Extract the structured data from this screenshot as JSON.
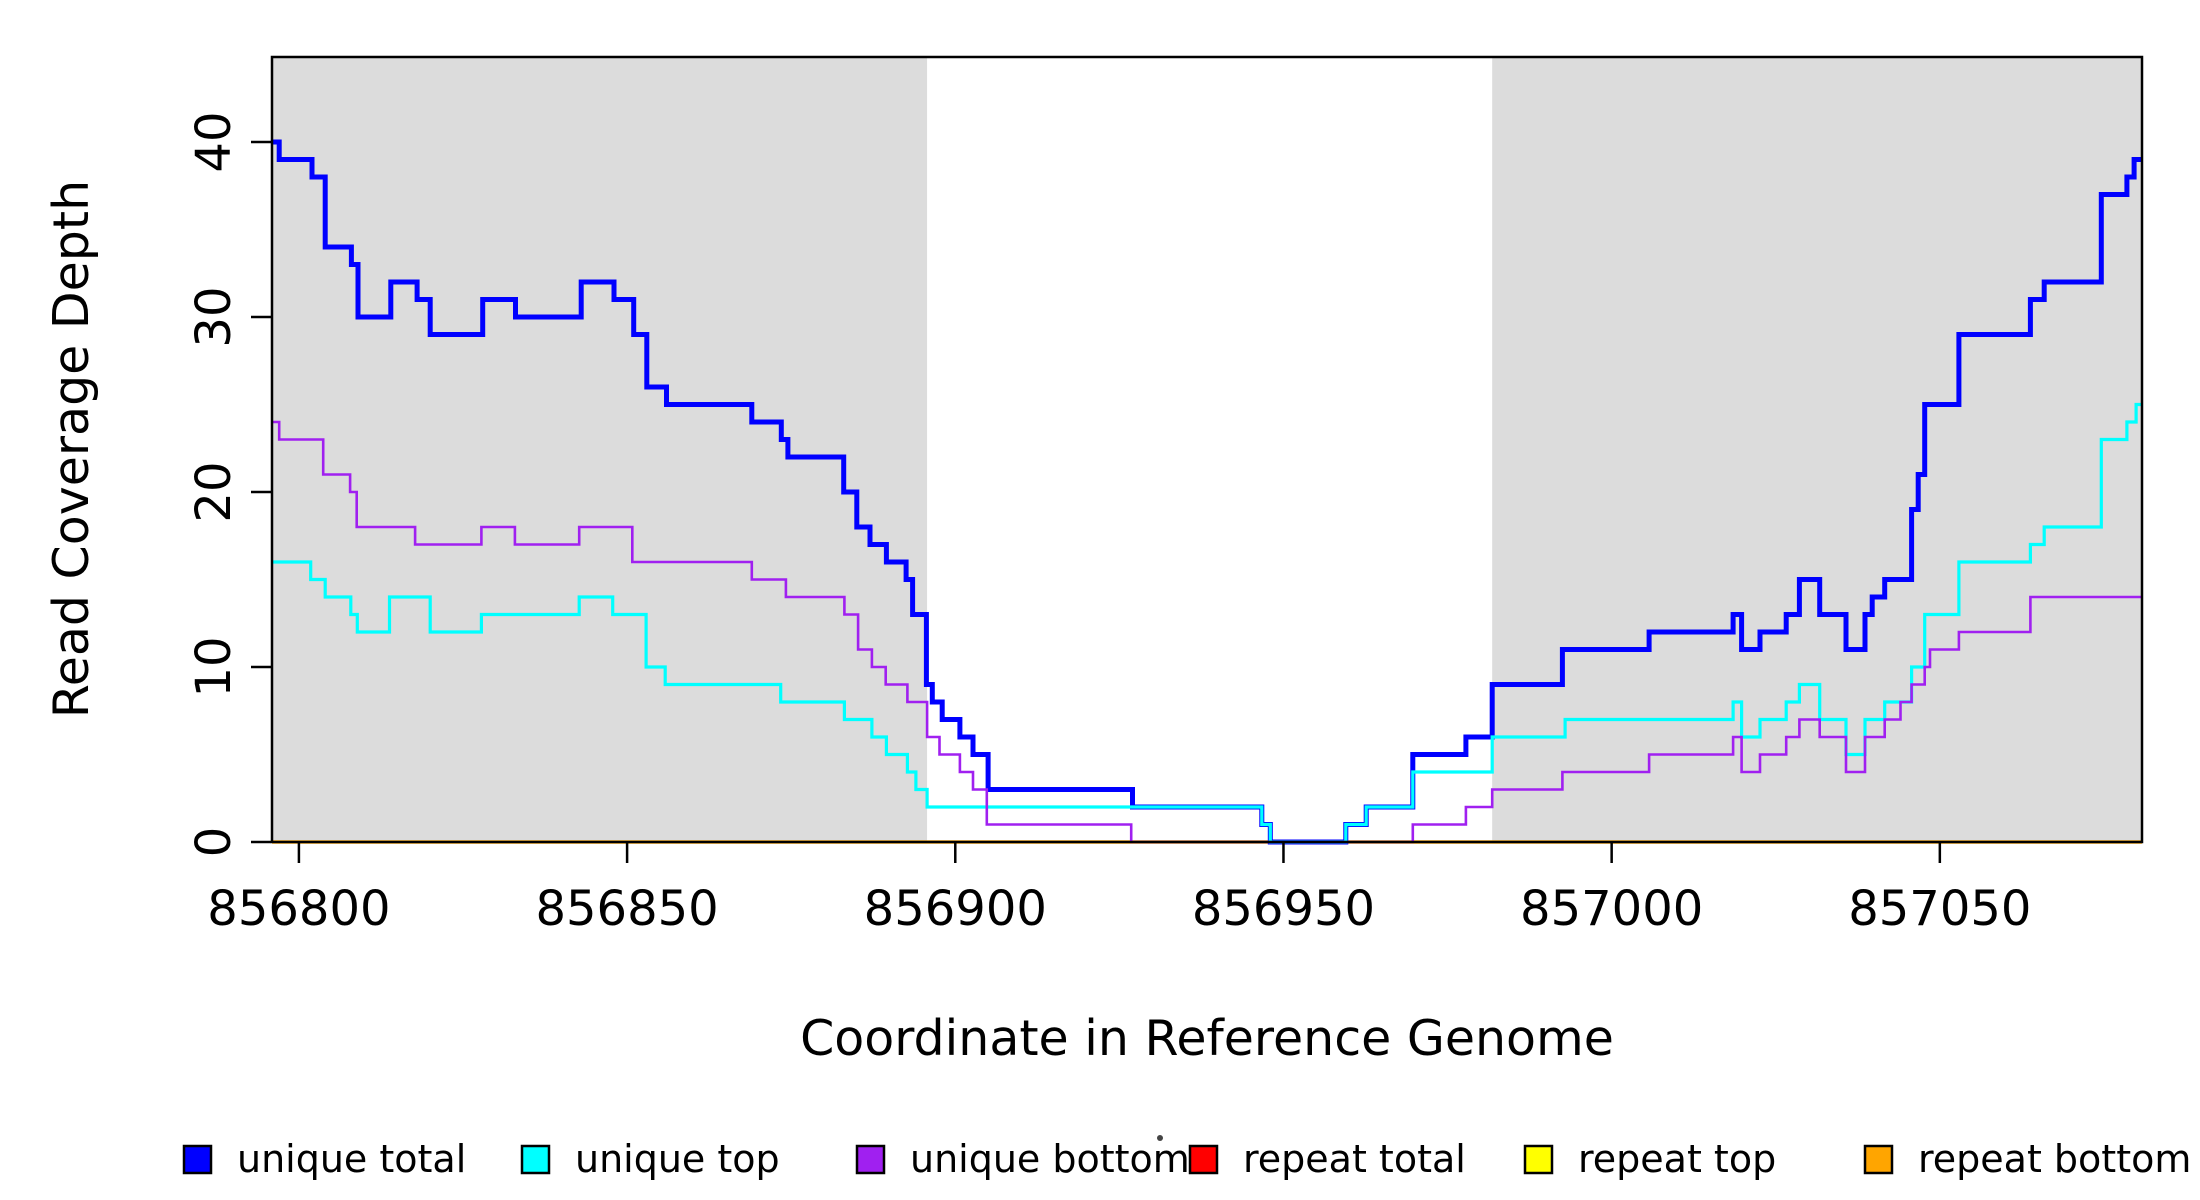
{
  "chart_data": {
    "type": "line",
    "subtype": "step-post",
    "title": "",
    "xlabel": "Coordinate in Reference Genome",
    "ylabel": "Read Coverage Depth",
    "xlim": [
      856795.9,
      857080.8
    ],
    "ylim": [
      0,
      44.86
    ],
    "grid": false,
    "x_ticks": [
      856800,
      856850,
      856900,
      856950,
      857000,
      857050
    ],
    "y_ticks": [
      0,
      10,
      20,
      30,
      40
    ],
    "shaded_regions": [
      {
        "name": "left-flank",
        "x0": 856795.9,
        "x1": 856895.7,
        "color": "#DCDCDC"
      },
      {
        "name": "right-flank",
        "x0": 856981.8,
        "x1": 857080.8,
        "color": "#DCDCDC"
      }
    ],
    "draw_order": [
      "repeat total",
      "repeat top",
      "repeat bottom",
      "unique total",
      "unique top",
      "unique bottom"
    ],
    "series": [
      {
        "name": "unique total",
        "color": "#0000FF",
        "stroke_width": 5,
        "points": [
          [
            856795.9,
            40
          ],
          [
            856797,
            39
          ],
          [
            856802,
            38
          ],
          [
            856804,
            34
          ],
          [
            856808,
            33
          ],
          [
            856809,
            30
          ],
          [
            856814,
            32
          ],
          [
            856818,
            31
          ],
          [
            856820,
            29
          ],
          [
            856828,
            31
          ],
          [
            856833,
            30
          ],
          [
            856843,
            32
          ],
          [
            856848,
            31
          ],
          [
            856851,
            29
          ],
          [
            856853,
            26
          ],
          [
            856856,
            25
          ],
          [
            856869,
            24
          ],
          [
            856873.5,
            23
          ],
          [
            856874.5,
            22
          ],
          [
            856883,
            20
          ],
          [
            856885,
            18
          ],
          [
            856887,
            17
          ],
          [
            856889.5,
            16
          ],
          [
            856892.5,
            15
          ],
          [
            856893.5,
            13
          ],
          [
            856895.6,
            9
          ],
          [
            856896.5,
            8
          ],
          [
            856898,
            7
          ],
          [
            856900.7,
            6
          ],
          [
            856902.7,
            5
          ],
          [
            856905,
            3
          ],
          [
            856927,
            2
          ],
          [
            856946.7,
            1
          ],
          [
            856948,
            0
          ],
          [
            856959.5,
            1
          ],
          [
            856962.6,
            2
          ],
          [
            856969.7,
            5
          ],
          [
            856977.8,
            6
          ],
          [
            856981.8,
            9
          ],
          [
            856992.5,
            11
          ],
          [
            857005.7,
            12
          ],
          [
            857018.5,
            13
          ],
          [
            857019.8,
            11
          ],
          [
            857022.6,
            12
          ],
          [
            857026.6,
            13
          ],
          [
            857028.6,
            15
          ],
          [
            857031.7,
            13
          ],
          [
            857035.7,
            11
          ],
          [
            857038.6,
            13
          ],
          [
            857039.7,
            14
          ],
          [
            857041.6,
            15
          ],
          [
            857045.7,
            19
          ],
          [
            857046.7,
            21
          ],
          [
            857047.7,
            25
          ],
          [
            857052.9,
            29
          ],
          [
            857063.8,
            31
          ],
          [
            857065.9,
            32
          ],
          [
            857074.6,
            37
          ],
          [
            857078.5,
            38
          ],
          [
            857079.6,
            39
          ]
        ]
      },
      {
        "name": "unique top",
        "color": "#00FFFF",
        "stroke_width": 3.2,
        "points": [
          [
            856795.9,
            16
          ],
          [
            856801.8,
            15
          ],
          [
            856804,
            14
          ],
          [
            856807.9,
            13
          ],
          [
            856808.9,
            12
          ],
          [
            856813.8,
            14
          ],
          [
            856820,
            12
          ],
          [
            856827.8,
            13
          ],
          [
            856842.7,
            14
          ],
          [
            856847.8,
            13
          ],
          [
            856852.9,
            10
          ],
          [
            856855.8,
            9
          ],
          [
            856873.4,
            8
          ],
          [
            856883.1,
            7
          ],
          [
            856887.3,
            6
          ],
          [
            856889.5,
            5
          ],
          [
            856892.7,
            4
          ],
          [
            856894,
            3
          ],
          [
            856895.7,
            2
          ],
          [
            856946.7,
            1
          ],
          [
            856948,
            0
          ],
          [
            856959.5,
            1
          ],
          [
            856962.6,
            2
          ],
          [
            856969.7,
            4
          ],
          [
            856981.8,
            6
          ],
          [
            856992.9,
            7
          ],
          [
            857018.5,
            8
          ],
          [
            857019.8,
            6
          ],
          [
            857022.6,
            7
          ],
          [
            857026.6,
            8
          ],
          [
            857028.6,
            9
          ],
          [
            857031.7,
            7
          ],
          [
            857035.7,
            5
          ],
          [
            857038.6,
            7
          ],
          [
            857041.6,
            8
          ],
          [
            857045.7,
            10
          ],
          [
            857047.7,
            13
          ],
          [
            857052.9,
            16
          ],
          [
            857063.8,
            17
          ],
          [
            857065.9,
            18
          ],
          [
            857074.6,
            23
          ],
          [
            857078.5,
            24
          ],
          [
            857079.9,
            25
          ]
        ]
      },
      {
        "name": "unique bottom",
        "color": "#A020F0",
        "stroke_width": 2.6,
        "points": [
          [
            856795.9,
            24
          ],
          [
            856797,
            23
          ],
          [
            856803.7,
            21
          ],
          [
            856807.8,
            20
          ],
          [
            856808.8,
            18
          ],
          [
            856817.7,
            17
          ],
          [
            856827.8,
            18
          ],
          [
            856832.9,
            17
          ],
          [
            856842.7,
            18
          ],
          [
            856850.8,
            16
          ],
          [
            856869,
            15
          ],
          [
            856874.2,
            14
          ],
          [
            856883.1,
            13
          ],
          [
            856885.2,
            11
          ],
          [
            856887.3,
            10
          ],
          [
            856889.4,
            9
          ],
          [
            856892.7,
            8
          ],
          [
            856895.7,
            6
          ],
          [
            856897.6,
            5
          ],
          [
            856900.7,
            4
          ],
          [
            856902.7,
            3
          ],
          [
            856904.8,
            1
          ],
          [
            856926.8,
            0
          ],
          [
            856969.7,
            1
          ],
          [
            856977.8,
            2
          ],
          [
            856981.8,
            3
          ],
          [
            856992.5,
            4
          ],
          [
            857005.7,
            5
          ],
          [
            857018.5,
            6
          ],
          [
            857019.8,
            4
          ],
          [
            857022.6,
            5
          ],
          [
            857026.6,
            6
          ],
          [
            857028.6,
            7
          ],
          [
            857031.7,
            6
          ],
          [
            857035.7,
            4
          ],
          [
            857038.6,
            6
          ],
          [
            857041.6,
            7
          ],
          [
            857044,
            8
          ],
          [
            857045.7,
            9
          ],
          [
            857047.7,
            10
          ],
          [
            857048.5,
            11
          ],
          [
            857052.9,
            12
          ],
          [
            857063.8,
            14
          ]
        ]
      },
      {
        "name": "repeat total",
        "color": "#FF0000",
        "stroke_width": 2.4,
        "points": [
          [
            856795.9,
            0
          ]
        ]
      },
      {
        "name": "repeat top",
        "color": "#FFFF00",
        "stroke_width": 2.4,
        "points": [
          [
            856795.9,
            0
          ]
        ]
      },
      {
        "name": "repeat bottom",
        "color": "#FFA500",
        "stroke_width": 3.6,
        "points": [
          [
            856795.9,
            0
          ]
        ]
      }
    ],
    "legend": {
      "position": "bottom",
      "items": [
        {
          "label": "unique total",
          "color": "#0000FF"
        },
        {
          "label": "unique top",
          "color": "#00FFFF"
        },
        {
          "label": "unique bottom",
          "color": "#A020F0"
        },
        {
          "label": "repeat total",
          "color": "#FF0000"
        },
        {
          "label": "repeat top",
          "color": "#FFFF00"
        },
        {
          "label": "repeat bottom",
          "color": "#FFA500"
        }
      ]
    }
  },
  "axes": {
    "x_label": "Coordinate in Reference Genome",
    "y_label": "Read Coverage Depth"
  }
}
